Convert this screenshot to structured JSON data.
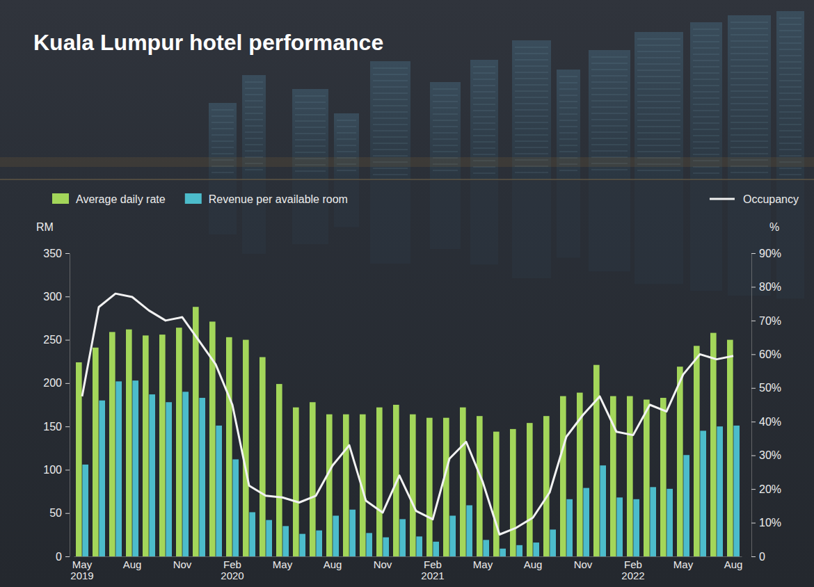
{
  "chart_data": {
    "type": "bar",
    "title": "Kuala Lumpur hotel performance",
    "categories": [
      "May 2019",
      null,
      null,
      "Aug",
      null,
      null,
      "Nov",
      null,
      null,
      "Feb 2020",
      null,
      null,
      "May",
      null,
      null,
      "Aug",
      null,
      null,
      "Nov",
      null,
      null,
      "Feb 2021",
      null,
      null,
      "May",
      null,
      null,
      "Aug",
      null,
      null,
      "Nov",
      null,
      null,
      "Feb 2022",
      null,
      null,
      "May",
      null,
      null,
      "Aug"
    ],
    "series": [
      {
        "name": "Average daily rate",
        "type": "bar",
        "color": "#a3d65a",
        "values": [
          224,
          241,
          259,
          262,
          255,
          256,
          264,
          288,
          271,
          253,
          250,
          230,
          199,
          172,
          178,
          164,
          164,
          164,
          172,
          175,
          164,
          160,
          160,
          172,
          162,
          144,
          147,
          154,
          162,
          185,
          189,
          221,
          185,
          185,
          181,
          183,
          219,
          243,
          258,
          250
        ]
      },
      {
        "name": "Revenue per available room",
        "type": "bar",
        "color": "#4cbccb",
        "values": [
          106,
          180,
          202,
          203,
          187,
          178,
          190,
          183,
          151,
          112,
          51,
          42,
          35,
          26,
          30,
          47,
          54,
          27,
          22,
          43,
          23,
          17,
          47,
          59,
          19,
          9,
          13,
          16,
          31,
          66,
          79,
          105,
          68,
          66,
          80,
          78,
          117,
          145,
          150,
          151
        ]
      },
      {
        "name": "Occupancy",
        "type": "line",
        "color": "#f2f2f2",
        "axis": "y2",
        "values": [
          47.5,
          74,
          78,
          77,
          73,
          70,
          71,
          64,
          57,
          45,
          21,
          18,
          17.5,
          16,
          18,
          27,
          33,
          16.5,
          13,
          24,
          13.5,
          11,
          29,
          34,
          22,
          6.5,
          8.5,
          11.5,
          19,
          35.5,
          42,
          47.5,
          37,
          36,
          45,
          43,
          54,
          60,
          58.5,
          59.5
        ]
      }
    ],
    "ylabel": "RM",
    "y2label": "%",
    "ylim": [
      0,
      350
    ],
    "yticks": [
      0,
      50,
      100,
      150,
      200,
      250,
      300,
      350
    ],
    "y2lim": [
      0,
      90
    ],
    "y2ticks": [
      0,
      {
        "value": 10,
        "label": "10%"
      },
      {
        "value": 20,
        "label": "20%"
      },
      {
        "value": 30,
        "label": "30%"
      },
      {
        "value": 40,
        "label": "40%"
      },
      {
        "value": 50,
        "label": "50%"
      },
      {
        "value": 60,
        "label": "60%"
      },
      {
        "value": 70,
        "label": "70%"
      },
      {
        "value": 80,
        "label": "80%"
      },
      {
        "value": 90,
        "label": "90%"
      }
    ],
    "legend": "top"
  }
}
